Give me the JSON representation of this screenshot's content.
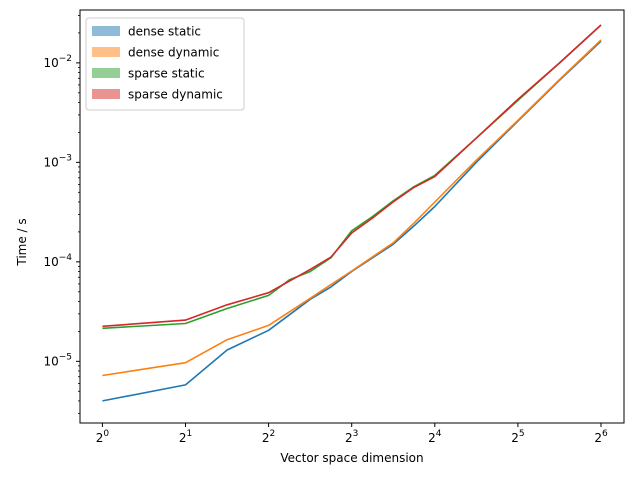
{
  "chart_data": {
    "type": "line",
    "xlabel": "Vector space dimension",
    "ylabel": "Time / s",
    "x_scale": "log2",
    "y_scale": "log10",
    "xlim": [
      0.84,
      1.02
    ],
    "ylim": [
      2.4e-06,
      0.034
    ],
    "x_ticks": [
      {
        "value": 1,
        "base": "2",
        "exp": "0"
      },
      {
        "value": 2,
        "base": "2",
        "exp": "1"
      },
      {
        "value": 4,
        "base": "2",
        "exp": "2"
      },
      {
        "value": 8,
        "base": "2",
        "exp": "3"
      },
      {
        "value": 16,
        "base": "2",
        "exp": "4"
      },
      {
        "value": 32,
        "base": "2",
        "exp": "5"
      },
      {
        "value": 64,
        "base": "2",
        "exp": "6"
      }
    ],
    "y_ticks": [
      {
        "value": 1e-05,
        "base": "10",
        "exp": "−5"
      },
      {
        "value": 0.0001,
        "base": "10",
        "exp": "−4"
      },
      {
        "value": 0.001,
        "base": "10",
        "exp": "−3"
      },
      {
        "value": 0.01,
        "base": "10",
        "exp": "−2"
      }
    ],
    "legend_position": "top-left",
    "grid": false,
    "series": [
      {
        "name": "dense static",
        "color": "#1f77b4",
        "x": [
          1,
          2,
          2.83,
          4,
          5.66,
          6.73,
          8,
          11.3,
          13.45,
          16,
          22.6,
          32,
          45.3,
          64
        ],
        "y": [
          4e-06,
          5.8e-06,
          1.3e-05,
          2.05e-05,
          4.2e-05,
          5.6e-05,
          8e-05,
          0.00015,
          0.00023,
          0.00036,
          0.001,
          0.0026,
          0.0067,
          0.0165
        ]
      },
      {
        "name": "dense dynamic",
        "color": "#ff7f0e",
        "x": [
          1,
          2,
          2.83,
          4,
          5.66,
          6.73,
          8,
          11.3,
          13.45,
          16,
          22.6,
          32,
          45.3,
          64
        ],
        "y": [
          7.2e-06,
          9.7e-06,
          1.65e-05,
          2.3e-05,
          4.3e-05,
          5.9e-05,
          8.1e-05,
          0.000155,
          0.000245,
          0.0004,
          0.00105,
          0.00265,
          0.0068,
          0.017
        ]
      },
      {
        "name": "sparse static",
        "color": "#2ca02c",
        "x": [
          1,
          2,
          2.83,
          4,
          4.76,
          5.66,
          6.73,
          8,
          9.51,
          11.3,
          13.45,
          16,
          22.6,
          32,
          45.3,
          64
        ],
        "y": [
          2.15e-05,
          2.4e-05,
          3.4e-05,
          4.6e-05,
          6.6e-05,
          8e-05,
          0.00011,
          0.000205,
          0.000285,
          0.00041,
          0.00057,
          0.00074,
          0.00175,
          0.0042,
          0.01,
          0.024
        ]
      },
      {
        "name": "sparse dynamic",
        "color": "#d62728",
        "x": [
          1,
          2,
          2.83,
          4,
          4.76,
          5.66,
          6.73,
          8,
          9.51,
          11.3,
          13.45,
          16,
          22.6,
          32,
          45.3,
          64
        ],
        "y": [
          2.25e-05,
          2.6e-05,
          3.7e-05,
          4.9e-05,
          6.4e-05,
          8.4e-05,
          0.000112,
          0.000195,
          0.000275,
          0.0004,
          0.00056,
          0.00072,
          0.00175,
          0.0043,
          0.01,
          0.024
        ]
      }
    ]
  }
}
